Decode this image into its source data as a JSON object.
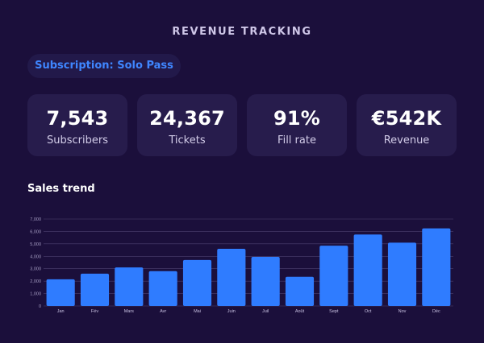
{
  "header": {
    "title": "REVENUE TRACKING"
  },
  "subscription_pill": {
    "label": "Subscription: Solo Pass"
  },
  "stats": [
    {
      "value": "7,543",
      "label": "Subscribers"
    },
    {
      "value": "24,367",
      "label": "Tickets"
    },
    {
      "value": "91%",
      "label": "Fill rate"
    },
    {
      "value": "€542K",
      "label": "Revenue"
    }
  ],
  "sales_trend": {
    "title": "Sales trend"
  },
  "colors": {
    "background": "#1b0f3b",
    "card": "#271c4c",
    "accent": "#2f7cff",
    "pill_text": "#3f86ff",
    "grid": "#4e4270"
  },
  "chart_data": {
    "type": "bar",
    "categories": [
      "Jan",
      "Fév",
      "Mars",
      "Avr",
      "Mai",
      "Juin",
      "Juil",
      "Août",
      "Sept",
      "Oct",
      "Nov",
      "Déc"
    ],
    "values": [
      2150,
      2600,
      3100,
      2800,
      3700,
      4600,
      3950,
      2350,
      4850,
      5750,
      5100,
      6250
    ],
    "title": "Sales trend",
    "xlabel": "",
    "ylabel": "",
    "ylim": [
      0,
      7000
    ],
    "yticks": [
      0,
      1000,
      2000,
      3000,
      4000,
      5000,
      6000,
      7000
    ],
    "ytick_labels": [
      "0",
      "1,000",
      "2,000",
      "3,000",
      "4,000",
      "5,000",
      "6,000",
      "7,000"
    ],
    "grid": true
  }
}
